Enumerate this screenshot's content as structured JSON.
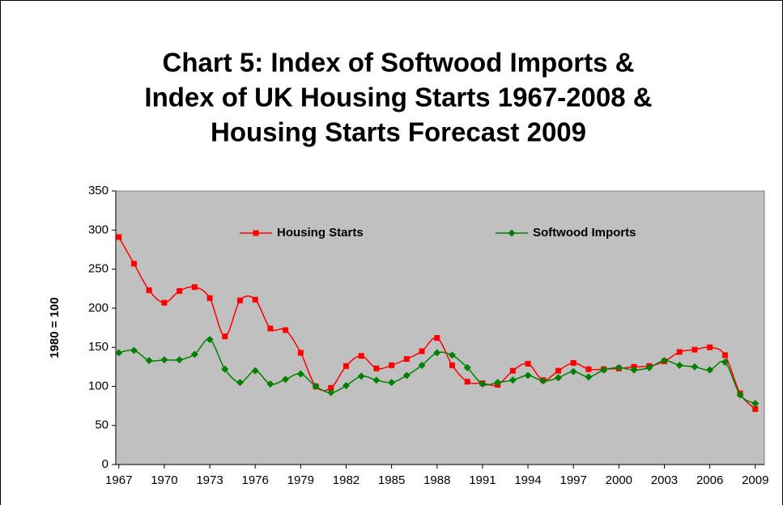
{
  "chart_data": {
    "type": "line",
    "title": [
      "Chart 5: Index of Softwood Imports &",
      "Index of UK Housing Starts 1967-2008 &",
      "Housing Starts Forecast 2009"
    ],
    "y_label": "1980 = 100",
    "x": [
      1967,
      1968,
      1969,
      1970,
      1971,
      1972,
      1973,
      1974,
      1975,
      1976,
      1977,
      1978,
      1979,
      1980,
      1981,
      1982,
      1983,
      1984,
      1985,
      1986,
      1987,
      1988,
      1989,
      1990,
      1991,
      1992,
      1993,
      1994,
      1995,
      1996,
      1997,
      1998,
      1999,
      2000,
      2001,
      2002,
      2003,
      2004,
      2005,
      2006,
      2007,
      2008,
      2009
    ],
    "series": [
      {
        "name": "Housing Starts",
        "color": "#ff0000",
        "marker": "square",
        "values": [
          291,
          257,
          223,
          207,
          222,
          227,
          213,
          164,
          210,
          211,
          174,
          172,
          143,
          100,
          98,
          126,
          139,
          123,
          127,
          135,
          145,
          162,
          127,
          106,
          104,
          102,
          120,
          129,
          108,
          120,
          130,
          122,
          122,
          123,
          125,
          126,
          132,
          144,
          147,
          150,
          140,
          91,
          71
        ]
      },
      {
        "name": "Softwood Imports",
        "color": "#008000",
        "marker": "diamond",
        "values": [
          143,
          146,
          133,
          134,
          134,
          141,
          160,
          122,
          105,
          120,
          103,
          109,
          116,
          100,
          92,
          101,
          113,
          108,
          105,
          114,
          127,
          143,
          140,
          124,
          103,
          105,
          108,
          114,
          107,
          111,
          119,
          112,
          121,
          124,
          121,
          124,
          133,
          127,
          125,
          121,
          131,
          89,
          78
        ]
      }
    ],
    "xlim": [
      1966.8,
      2009.6
    ],
    "xticks": [
      1967,
      1970,
      1973,
      1976,
      1979,
      1982,
      1985,
      1988,
      1991,
      1994,
      1997,
      2000,
      2003,
      2006,
      2009
    ],
    "ylim": [
      0,
      350
    ],
    "yticks": [
      0,
      50,
      100,
      150,
      200,
      250,
      300,
      350
    ],
    "plot_background": "#c0c0c0",
    "smooth": true,
    "legend": "top"
  }
}
